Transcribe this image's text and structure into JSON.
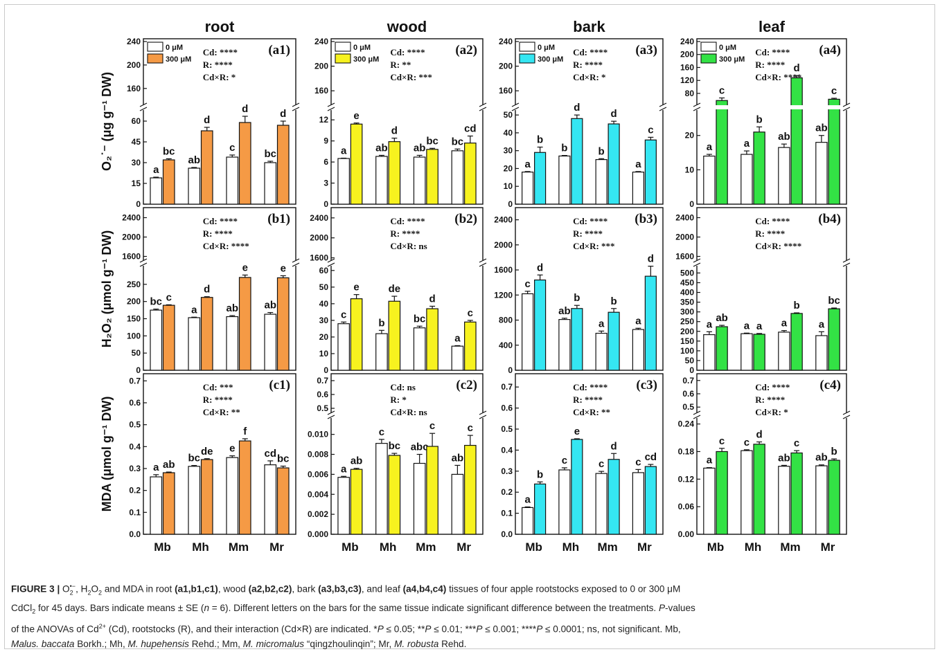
{
  "chart_data": {
    "type": "bar",
    "rootstocks": [
      "Mb",
      "Mh",
      "Mm",
      "Mr"
    ],
    "legend": [
      "0 μM",
      "300 μM"
    ],
    "tissues": [
      {
        "name": "root",
        "color": "#F59A45"
      },
      {
        "name": "wood",
        "color": "#F7F21F"
      },
      {
        "name": "bark",
        "color": "#35E6F2"
      },
      {
        "name": "leaf",
        "color": "#33E245"
      }
    ],
    "rows": [
      {
        "ylabel": "O₂˙⁻ (μg g⁻¹ DW)",
        "panels": [
          {
            "tag": "(a1)",
            "stats": [
              "Cd: ****",
              "R: ****",
              "Cd×R: *"
            ],
            "lower": [
              0,
              67
            ],
            "lower_ticks": [
              0,
              15,
              30,
              45,
              60
            ],
            "upper": [
              135,
              240
            ],
            "upper_ticks": [
              160,
              200,
              240
            ],
            "c0": [
              19,
              26,
              34,
              30
            ],
            "e0": [
              0.5,
              0.5,
              1.5,
              1
            ],
            "l0": [
              "a",
              "ab",
              "c",
              "bc"
            ],
            "c3": [
              32,
              53,
              59,
              57
            ],
            "e3": [
              0.8,
              2.5,
              4.5,
              3
            ],
            "l3": [
              "bc",
              "d",
              "d",
              "d"
            ],
            "legend": true
          },
          {
            "tag": "(a2)",
            "stats": [
              "Cd: ****",
              "R: **",
              "Cd×R: ***"
            ],
            "lower": [
              0,
              13.2
            ],
            "lower_ticks": [
              0,
              3,
              6,
              9,
              12
            ],
            "upper": [
              140,
              240
            ],
            "upper_ticks": [
              160,
              200,
              240
            ],
            "c0": [
              6.5,
              6.8,
              6.7,
              7.6
            ],
            "e0": [
              0.05,
              0.15,
              0.25,
              0.25
            ],
            "l0": [
              "a",
              "ab",
              "ab",
              "bc"
            ],
            "c3": [
              11.4,
              8.9,
              7.8,
              8.7
            ],
            "e3": [
              0.15,
              0.5,
              0.15,
              1
            ],
            "l3": [
              "e",
              "d",
              "bc",
              "cd"
            ],
            "legend": true
          },
          {
            "tag": "(a3)",
            "stats": [
              "Cd: ****",
              "R: ****",
              "Cd×R: *"
            ],
            "lower": [
              0,
              52
            ],
            "lower_ticks": [
              0,
              10,
              20,
              30,
              40,
              50
            ],
            "upper": [
              140,
              240
            ],
            "upper_ticks": [
              160,
              200,
              240
            ],
            "c0": [
              18,
              27,
              25,
              18
            ],
            "e0": [
              0.3,
              0.3,
              0.5,
              0.3
            ],
            "l0": [
              "a",
              "b",
              "b",
              "a"
            ],
            "c3": [
              29,
              48,
              45,
              36
            ],
            "e3": [
              3,
              2,
              1.5,
              1.5
            ],
            "l3": [
              "b",
              "d",
              "d",
              "c"
            ],
            "legend": true
          },
          {
            "tag": "(a4)",
            "stats": [
              "Cd: ****",
              "R: ****",
              "Cd×R: ****"
            ],
            "lower": [
              0,
              27
            ],
            "lower_ticks": [
              0,
              10,
              20
            ],
            "upper": [
              50,
              240
            ],
            "upper_ticks": [
              80,
              120,
              160,
              200,
              240
            ],
            "c0": [
              14,
              14.5,
              16.5,
              18
            ],
            "e0": [
              0.5,
              1,
              1,
              2
            ],
            "l0": [
              "a",
              "a",
              "ab",
              "ab"
            ],
            "c3": [
              58,
              21,
              128,
              62
            ],
            "e3": [
              8,
              1.5,
              7,
              3
            ],
            "l3": [
              "c",
              "b",
              "d",
              "c"
            ],
            "legend": true
          }
        ]
      },
      {
        "ylabel": "H₂O₂ (μmol g⁻¹ DW)",
        "panels": [
          {
            "tag": "(b1)",
            "stats": [
              "Cd: ****",
              "R: ****",
              "Cd×R: ****"
            ],
            "lower": [
              0,
              300
            ],
            "lower_ticks": [
              0,
              50,
              100,
              150,
              200,
              250
            ],
            "upper": [
              1550,
              2550
            ],
            "upper_ticks": [
              1600,
              2000,
              2400
            ],
            "c0": [
              175,
              153,
              156,
              163
            ],
            "e0": [
              3,
              1.5,
              3,
              5
            ],
            "l0": [
              "bc",
              "a",
              "ab",
              "ab"
            ],
            "c3": [
              189,
              212,
              270,
              269
            ],
            "e3": [
              1.5,
              2,
              7,
              6
            ],
            "l3": [
              "c",
              "d",
              "e",
              "e"
            ]
          },
          {
            "tag": "(b2)",
            "stats": [
              "Cd: ****",
              "R: ****",
              "Cd×R: ns"
            ],
            "lower": [
              0,
              62
            ],
            "lower_ticks": [
              0,
              10,
              20,
              30,
              40,
              50,
              60
            ],
            "upper": [
              1580,
              2550
            ],
            "upper_ticks": [
              1600,
              2000,
              2400
            ],
            "c0": [
              28,
              22,
              25.5,
              14.5
            ],
            "e0": [
              1,
              2,
              1,
              0.3
            ],
            "l0": [
              "c",
              "b",
              "bc",
              "a"
            ],
            "c3": [
              43,
              41.5,
              37,
              29
            ],
            "e3": [
              2.5,
              3,
              1.5,
              1
            ],
            "l3": [
              "e",
              "de",
              "d",
              "c"
            ]
          },
          {
            "tag": "(b3)",
            "stats": [
              "Cd: ****",
              "R: ****",
              "Cd×R: ***"
            ],
            "lower": [
              0,
              2550
            ],
            "lower_ticks": [
              0,
              400,
              800,
              1200,
              1600,
              2000,
              2400
            ],
            "upper": null,
            "upper_ticks": [],
            "c0": [
              1220,
              810,
              590,
              650
            ],
            "e0": [
              40,
              20,
              35,
              20
            ],
            "l0": [
              "c",
              "ab",
              "a",
              "a"
            ],
            "c3": [
              1440,
              985,
              925,
              1500
            ],
            "e3": [
              80,
              50,
              60,
              160
            ],
            "l3": [
              "d",
              "b",
              "b",
              "d"
            ]
          },
          {
            "tag": "(b4)",
            "stats": [
              "Cd: ****",
              "R: ****",
              "Cd×R: ****"
            ],
            "lower": [
              0,
              530
            ],
            "lower_ticks": [
              0,
              50,
              100,
              150,
              200,
              250,
              300,
              350,
              400,
              450,
              500
            ],
            "upper": [
              1550,
              2550
            ],
            "upper_ticks": [
              1600,
              2000,
              2400
            ],
            "c0": [
              183,
              188,
              196,
              178
            ],
            "e0": [
              15,
              3,
              8,
              20
            ],
            "l0": [
              "a",
              "a",
              "a",
              "a"
            ],
            "c3": [
              224,
              185,
              292,
              316
            ],
            "e3": [
              7,
              4,
              3,
              4
            ],
            "l3": [
              "ab",
              "a",
              "b",
              "bc"
            ]
          }
        ]
      },
      {
        "ylabel": "MDA (μmol g⁻¹ DW)",
        "panels": [
          {
            "tag": "(c1)",
            "stats": [
              "Cd: ***",
              "R: ****",
              "Cd×R: **"
            ],
            "lower": [
              0,
              0.72
            ],
            "lower_ticks": [
              0,
              0.1,
              0.2,
              0.3,
              0.4,
              0.5,
              0.6,
              0.7
            ],
            "upper": null,
            "upper_ticks": [],
            "c0": [
              0.262,
              0.31,
              0.35,
              0.317
            ],
            "e0": [
              0.01,
              0.004,
              0.008,
              0.018
            ],
            "l0": [
              "a",
              "bc",
              "e",
              "cd"
            ],
            "c3": [
              0.281,
              0.341,
              0.426,
              0.303
            ],
            "e3": [
              0.003,
              0.004,
              0.01,
              0.008
            ],
            "l3": [
              "ab",
              "de",
              "f",
              "bc"
            ]
          },
          {
            "tag": "(c2)",
            "stats": [
              "Cd: ns",
              "R: *",
              "Cd×R: ns"
            ],
            "lower": [
              0,
              0.0115
            ],
            "lower_ticks": [
              0,
              0.002,
              0.004,
              0.006,
              0.008,
              0.01
            ],
            "upper": [
              0.48,
              0.73
            ],
            "upper_ticks": [
              0.5,
              0.6,
              0.7
            ],
            "c0": [
              0.0057,
              0.0091,
              0.0071,
              0.006
            ],
            "e0": [
              0.0001,
              0.0004,
              0.0009,
              0.0009
            ],
            "l0": [
              "a",
              "c",
              "abc",
              "ab"
            ],
            "c3": [
              0.0065,
              0.0079,
              0.0088,
              0.0089
            ],
            "e3": [
              0.0001,
              0.0002,
              0.0013,
              0.001
            ],
            "l3": [
              "ab",
              "bc",
              "c",
              "c"
            ]
          },
          {
            "tag": "(c3)",
            "stats": [
              "Cd: ****",
              "R: ****",
              "Cd×R: **"
            ],
            "lower": [
              0,
              0.75
            ],
            "lower_ticks": [
              0,
              0.1,
              0.2,
              0.3,
              0.4,
              0.5,
              0.6,
              0.7
            ],
            "upper": null,
            "upper_ticks": [],
            "c0": [
              0.127,
              0.306,
              0.289,
              0.293
            ],
            "e0": [
              0.003,
              0.01,
              0.01,
              0.015
            ],
            "l0": [
              "a",
              "c",
              "c",
              "c"
            ],
            "c3": [
              0.239,
              0.451,
              0.356,
              0.322
            ],
            "e3": [
              0.01,
              0.003,
              0.028,
              0.01
            ],
            "l3": [
              "b",
              "e",
              "d",
              "cd"
            ]
          },
          {
            "tag": "(c4)",
            "stats": [
              "Cd: ****",
              "R: ****",
              "Cd×R: *"
            ],
            "lower": [
              0,
              0.25
            ],
            "lower_ticks": [
              0,
              0.06,
              0.12,
              0.18,
              0.24
            ],
            "upper": [
              0.47,
              0.73
            ],
            "upper_ticks": [
              0.5,
              0.6,
              0.7
            ],
            "c0": [
              0.144,
              0.182,
              0.148,
              0.149
            ],
            "e0": [
              0.001,
              0.002,
              0.002,
              0.002
            ],
            "l0": [
              "a",
              "c",
              "ab",
              "ab"
            ],
            "c3": [
              0.18,
              0.196,
              0.177,
              0.161
            ],
            "e3": [
              0.007,
              0.005,
              0.005,
              0.003
            ],
            "l3": [
              "c",
              "d",
              "c",
              "b"
            ]
          }
        ]
      }
    ]
  },
  "caption": {
    "fig": "FIGURE 3 |",
    "a": " O",
    "b": ", H",
    "c": "O",
    "d": " and MDA in root ",
    "e": "(a1,b1,c1)",
    "f": ", wood ",
    "g": "(a2,b2,c2)",
    "h": ", bark ",
    "i": "(a3,b3,c3)",
    "j": ", and leaf ",
    "k": "(a4,b4,c4)",
    "l": " tissues of four apple rootstocks exposed to 0 or 300 μM",
    "m": "CdCl",
    "n": " for 45 days. Bars indicate means ± SE (",
    "o": "n",
    "p": " = 6). Different letters on the bars for the same tissue indicate significant difference between the treatments. ",
    "q": "P",
    "r": "-values",
    "s": "of the ANOVAs of Cd",
    "t": " (Cd), rootstocks (R), and their interaction (Cd×R) are indicated. *",
    "u": " ≤ 0.05; **",
    "v": " ≤ 0.01; ***",
    "w": " ≤ 0.001; ****",
    "x": " ≤ 0.0001; ns, not significant. Mb,",
    "y": "Malus. baccata",
    "z": " Borkh.; Mh, ",
    "aa": "M. hupehensis",
    "ab": " Rehd.; Mm, ",
    "ac": "M. micromalus",
    "ad": " “qingzhoulinqin”; Mr, ",
    "ae": "M. robusta",
    "af": " Rehd.",
    "sup1": "•−",
    "sub2": "2",
    "sup2": "2+"
  }
}
